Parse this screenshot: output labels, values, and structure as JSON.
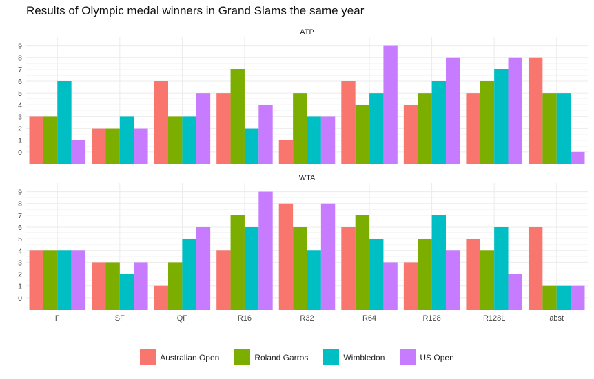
{
  "title": "Results of Olympic medal winners in Grand Slams the same year",
  "chart_data": {
    "type": "bar",
    "layout": "faceted-grouped",
    "categories": [
      "F",
      "SF",
      "QF",
      "R16",
      "R32",
      "R64",
      "R128",
      "R128L",
      "abst"
    ],
    "yticks": [
      0,
      1,
      2,
      3,
      4,
      5,
      6,
      7,
      8,
      9
    ],
    "ylim": [
      -1,
      9.5
    ],
    "grid": true,
    "legend_position": "bottom",
    "series_names": [
      "Australian Open",
      "Roland Garros",
      "Wimbledon",
      "US Open"
    ],
    "series_colors": [
      "#F8766D",
      "#7CAE00",
      "#00BFC4",
      "#C77CFF"
    ],
    "panels": [
      {
        "strip": "ATP",
        "series": [
          {
            "name": "Australian Open",
            "values": [
              3,
              2,
              6,
              5,
              1,
              6,
              4,
              5,
              8
            ]
          },
          {
            "name": "Roland Garros",
            "values": [
              3,
              2,
              3,
              7,
              5,
              4,
              5,
              6,
              5
            ]
          },
          {
            "name": "Wimbledon",
            "values": [
              6,
              3,
              3,
              2,
              3,
              5,
              6,
              7,
              5
            ]
          },
          {
            "name": "US Open",
            "values": [
              1,
              2,
              5,
              4,
              3,
              9,
              8,
              8,
              0
            ]
          }
        ]
      },
      {
        "strip": "WTA",
        "series": [
          {
            "name": "Australian Open",
            "values": [
              4,
              3,
              1,
              4,
              8,
              6,
              3,
              5,
              6
            ]
          },
          {
            "name": "Roland Garros",
            "values": [
              4,
              3,
              3,
              7,
              6,
              7,
              5,
              4,
              1
            ]
          },
          {
            "name": "Wimbledon",
            "values": [
              4,
              2,
              5,
              6,
              4,
              5,
              7,
              6,
              1
            ]
          },
          {
            "name": "US Open",
            "values": [
              4,
              3,
              6,
              9,
              8,
              3,
              4,
              2,
              1
            ]
          }
        ]
      }
    ]
  }
}
